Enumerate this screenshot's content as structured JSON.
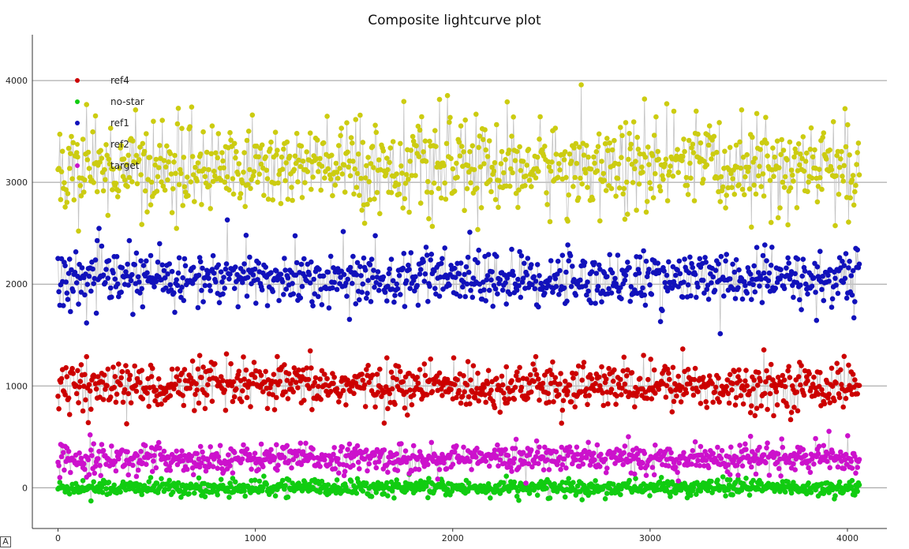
{
  "chart_data": {
    "type": "scatter",
    "title": "Composite lightcurve plot",
    "xlabel": "",
    "ylabel": "",
    "xlim": [
      -130,
      4200
    ],
    "ylim": [
      -400,
      4450
    ],
    "x_ticks": [
      0,
      1000,
      2000,
      3000,
      4000
    ],
    "y_ticks": [
      0,
      1000,
      2000,
      3000,
      4000
    ],
    "grid": "horizontal",
    "legend_position": "top-left",
    "x_range_of_points": [
      0,
      4060
    ],
    "series": [
      {
        "name": "ref4",
        "color": "#cc0000",
        "level": 1000,
        "spread": 110
      },
      {
        "name": "no-star",
        "color": "#11cc11",
        "level": 0,
        "spread": 38
      },
      {
        "name": "ref1",
        "color": "#1111bb",
        "level": 2050,
        "spread": 130
      },
      {
        "name": "ref2",
        "color": "#cccc11",
        "level": 3150,
        "spread": 220
      },
      {
        "name": "target",
        "color": "#cc11cc",
        "level": 290,
        "spread": 65
      }
    ]
  },
  "corner_badge": "A"
}
